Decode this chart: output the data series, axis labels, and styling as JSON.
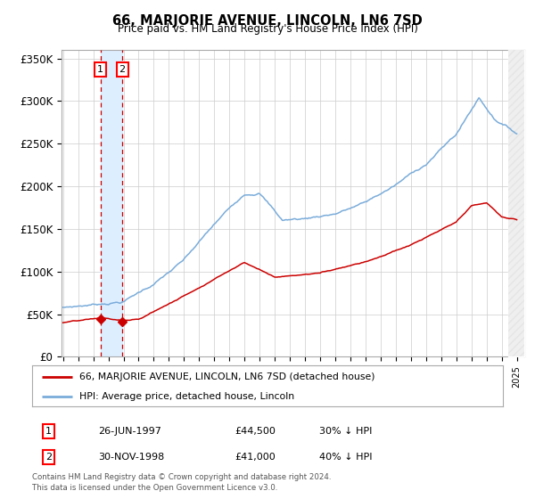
{
  "title": "66, MARJORIE AVENUE, LINCOLN, LN6 7SD",
  "subtitle": "Price paid vs. HM Land Registry's House Price Index (HPI)",
  "legend_line1": "66, MARJORIE AVENUE, LINCOLN, LN6 7SD (detached house)",
  "legend_line2": "HPI: Average price, detached house, Lincoln",
  "footer": "Contains HM Land Registry data © Crown copyright and database right 2024.\nThis data is licensed under the Open Government Licence v3.0.",
  "sale1_date": "26-JUN-1997",
  "sale1_price": "£44,500",
  "sale1_hpi": "30% ↓ HPI",
  "sale2_date": "30-NOV-1998",
  "sale2_price": "£41,000",
  "sale2_hpi": "40% ↓ HPI",
  "hpi_color": "#7aacda",
  "property_color": "#cc0000",
  "sale_marker_color": "#cc0000",
  "dashed_line_color": "#cc0000",
  "shade_color": "#ddeeff",
  "x_start_year": 1995,
  "x_end_year": 2025,
  "ylim_min": 0,
  "ylim_max": 360000,
  "yticks": [
    0,
    50000,
    100000,
    150000,
    200000,
    250000,
    300000,
    350000
  ],
  "ytick_labels": [
    "£0",
    "£50K",
    "£100K",
    "£150K",
    "£200K",
    "£250K",
    "£300K",
    "£350K"
  ],
  "sale1_year": 1997.48,
  "sale2_year": 1998.92,
  "sale1_value": 44500,
  "sale2_value": 41000,
  "background_color": "#ffffff",
  "grid_color": "#cccccc"
}
